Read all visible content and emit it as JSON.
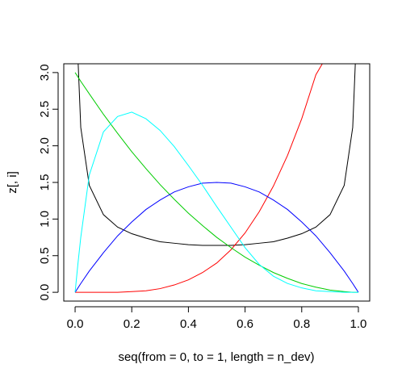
{
  "chart_data": {
    "type": "line",
    "title": "",
    "xlabel": "seq(from = 0, to = 1, length = n_dev)",
    "ylabel": "z[, i]",
    "xlim": [
      -0.04,
      1.04
    ],
    "ylim": [
      -0.12,
      3.12
    ],
    "xticks": [
      "0.0",
      "0.2",
      "0.4",
      "0.6",
      "0.8",
      "1.0"
    ],
    "yticks": [
      "0.0",
      "0.5",
      "1.0",
      "1.5",
      "2.0",
      "2.5",
      "3.0"
    ],
    "grid": false,
    "legend": "none",
    "x": [
      0.0,
      0.01,
      0.02,
      0.05,
      0.1,
      0.15,
      0.2,
      0.25,
      0.3,
      0.35,
      0.4,
      0.45,
      0.5,
      0.55,
      0.6,
      0.65,
      0.7,
      0.75,
      0.8,
      0.85,
      0.9,
      0.95,
      0.98,
      0.99,
      1.0
    ],
    "series": [
      {
        "color": "#000000",
        "values": [
          null,
          3.2,
          2.25,
          1.46,
          1.06,
          0.89,
          0.8,
          0.74,
          0.69,
          0.67,
          0.65,
          0.64,
          0.64,
          0.64,
          0.65,
          0.67,
          0.69,
          0.74,
          0.8,
          0.89,
          1.06,
          1.46,
          2.25,
          3.2,
          null
        ]
      },
      {
        "color": "#ff0000",
        "values": [
          0.0,
          0.0,
          0.0,
          0.0,
          0.0,
          0.0,
          0.01,
          0.02,
          0.05,
          0.1,
          0.17,
          0.27,
          0.4,
          0.58,
          0.81,
          1.1,
          1.45,
          1.87,
          2.37,
          2.97,
          3.3,
          null,
          null,
          null,
          null
        ]
      },
      {
        "color": "#00cc00",
        "values": [
          3.0,
          2.94,
          2.88,
          2.71,
          2.43,
          2.17,
          1.92,
          1.69,
          1.47,
          1.27,
          1.08,
          0.91,
          0.75,
          0.61,
          0.48,
          0.37,
          0.27,
          0.19,
          0.12,
          0.07,
          0.03,
          0.01,
          0.0,
          0.0,
          0.0
        ]
      },
      {
        "color": "#0000ff",
        "values": [
          0.0,
          0.06,
          0.12,
          0.29,
          0.54,
          0.77,
          0.96,
          1.13,
          1.26,
          1.37,
          1.44,
          1.49,
          1.5,
          1.49,
          1.44,
          1.37,
          1.26,
          1.13,
          0.96,
          0.77,
          0.54,
          0.29,
          0.12,
          0.06,
          0.0
        ]
      },
      {
        "color": "#00ffff",
        "values": [
          0.0,
          0.39,
          0.75,
          1.6,
          2.19,
          2.4,
          2.46,
          2.37,
          2.21,
          1.99,
          1.73,
          1.46,
          1.17,
          0.89,
          0.61,
          0.38,
          0.22,
          0.12,
          0.06,
          0.02,
          0.01,
          0.0,
          0.0,
          0.0,
          0.0
        ]
      }
    ]
  }
}
